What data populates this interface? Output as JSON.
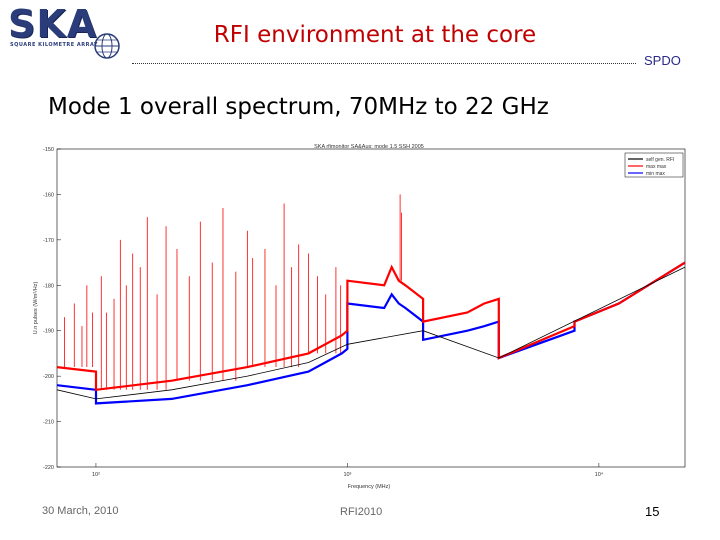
{
  "header": {
    "logo_text": "SKA",
    "logo_subtext": "SQUARE KILOMETRE ARRAY",
    "title": "RFI environment at the core",
    "org": "SPDO"
  },
  "subtitle": "Mode 1 overall spectrum, 70MHz to 22 GHz",
  "footer": {
    "date": "30 March, 2010",
    "conference": "RFI2010",
    "page": "15"
  },
  "colors": {
    "title_red": "#c00000",
    "series_red": "#ff0000",
    "series_blue": "#0000ff",
    "series_black": "#000000"
  },
  "chart_data": {
    "type": "line",
    "title": "SKA rfimonitor SA&Aus: mode 1.5 SSH 2005",
    "xlabel": "Frequency (MHz)",
    "ylabel": "U.n pulses (W/m²/Hz)",
    "xscale": "log",
    "xlim": [
      70,
      22000
    ],
    "ylim": [
      -220,
      -150
    ],
    "x_ticks": [
      100,
      1000,
      10000
    ],
    "x_tick_labels": [
      "10²",
      "10³",
      "10⁴"
    ],
    "y_ticks": [
      -150,
      -160,
      -170,
      -180,
      -190,
      -200,
      -210,
      -220
    ],
    "y_tick_labels": [
      "-150",
      "-160",
      "-170",
      "-180",
      "-190",
      "-200",
      "-210",
      "-220"
    ],
    "legend": [
      "self gen. RFI",
      "max max",
      "min max"
    ],
    "series": [
      {
        "name": "min max",
        "color": "#0000ff",
        "x": [
          70,
          100,
          100,
          200,
          400,
          700,
          950,
          1000,
          1000,
          1400,
          1500,
          1600,
          1700,
          2000,
          2000,
          3000,
          3500,
          4000,
          4000,
          8000,
          8000,
          12000,
          22000
        ],
        "y": [
          -202,
          -203,
          -206,
          -205,
          -202,
          -199,
          -195,
          -194,
          -184,
          -185,
          -182,
          -184,
          -185,
          -188,
          -192,
          -190,
          -189,
          -188,
          -196,
          -190,
          -188,
          -184,
          -175
        ]
      },
      {
        "name": "max max",
        "color": "#ff0000",
        "x": [
          70,
          100,
          100,
          200,
          400,
          700,
          950,
          1000,
          1000,
          1400,
          1500,
          1600,
          1700,
          2000,
          2000,
          3000,
          3500,
          4000,
          4000,
          8000,
          8000,
          12000,
          22000
        ],
        "y": [
          -198,
          -199,
          -203,
          -201,
          -198,
          -195,
          -191,
          -190,
          -179,
          -180,
          -176,
          -179,
          -180,
          -183,
          -188,
          -186,
          -184,
          -183,
          -196,
          -189,
          -188,
          -184,
          -175
        ]
      },
      {
        "name": "self gen. RFI",
        "color": "#000000",
        "x": [
          70,
          100,
          200,
          400,
          700,
          1000,
          2000,
          4000,
          22000
        ],
        "y": [
          -203,
          -205,
          -203,
          -200,
          -197,
          -193,
          -190,
          -196,
          -176
        ]
      }
    ],
    "spikes": {
      "color": "#ff0000",
      "x": [
        75,
        82,
        88,
        92,
        97,
        105,
        110,
        118,
        125,
        132,
        140,
        150,
        160,
        175,
        190,
        210,
        235,
        260,
        290,
        320,
        360,
        400,
        420,
        470,
        520,
        560,
        600,
        640,
        700,
        760,
        820,
        900,
        940,
        1620,
        1640
      ],
      "y": [
        -187,
        -184,
        -189,
        -180,
        -186,
        -178,
        -186,
        -183,
        -170,
        -180,
        -173,
        -176,
        -165,
        -182,
        -167,
        -172,
        -178,
        -166,
        -175,
        -163,
        -177,
        -168,
        -174,
        -172,
        -180,
        -162,
        -176,
        -171,
        -173,
        -178,
        -182,
        -176,
        -180,
        -160,
        -164
      ]
    }
  }
}
